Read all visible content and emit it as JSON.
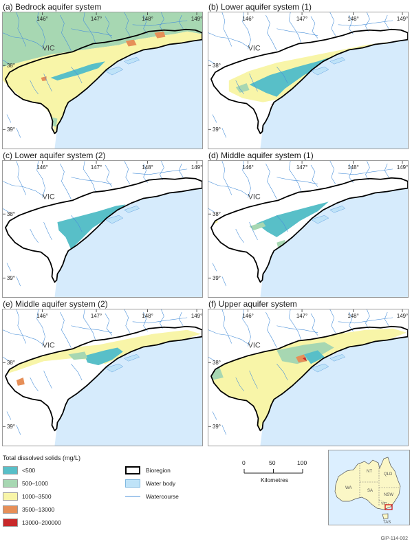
{
  "panels": [
    {
      "id": "a",
      "title": "(a) Bedrock aquifer system"
    },
    {
      "id": "b",
      "title": "(b) Lower aquifer system (1)"
    },
    {
      "id": "c",
      "title": "(c) Lower aquifer system (2)"
    },
    {
      "id": "d",
      "title": "(d) Middle aquifer system (1)"
    },
    {
      "id": "e",
      "title": "(e) Middle aquifer system (2)"
    },
    {
      "id": "f",
      "title": "(f) Upper aquifer system"
    }
  ],
  "map_labels": {
    "lon_146": "146°",
    "lon_147": "147°",
    "lon_148": "148°",
    "lon_149": "149°",
    "lat_38": "38°",
    "lat_39": "39°",
    "state": "VIC"
  },
  "legend": {
    "title": "Total dissolved solids (mg/L)",
    "classes": [
      {
        "label": "<500",
        "color": "#58bfc8"
      },
      {
        "label": "500–1000",
        "color": "#a7d7b2"
      },
      {
        "label": "1000–3500",
        "color": "#f8f5a8"
      },
      {
        "label": "3500–13000",
        "color": "#e68f58"
      },
      {
        "label": "13000–200000",
        "color": "#c8282a"
      }
    ],
    "bioregion": "Bioregion",
    "water_body": "Water body",
    "watercourse": "Watercourse"
  },
  "scale_bar": {
    "ticks": [
      "0",
      "50",
      "100"
    ],
    "unit": "Kilometres"
  },
  "inset": {
    "regions": [
      "WA",
      "NT",
      "QLD",
      "SA",
      "NSW",
      "VIC",
      "TAS"
    ]
  },
  "figure_code": "GIP-114-002",
  "colors": {
    "sea": "#d6ebfc",
    "watercourse": "#4a90d9",
    "bioregion_outline": "#000000"
  }
}
